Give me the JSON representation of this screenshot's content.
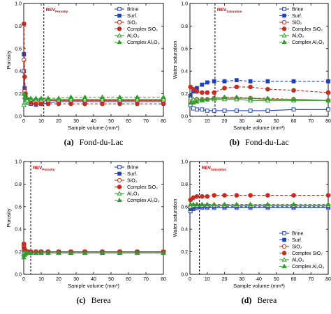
{
  "chart_data": [
    {
      "type": "line",
      "caption_letter": "(a)",
      "caption_text": "Fond-du-Lac",
      "xlabel": "Sample volume (mm³)",
      "ylabel": "Porosity",
      "xlim": [
        0,
        80
      ],
      "ylim": [
        0,
        1.0
      ],
      "xticks": [
        0,
        10,
        20,
        30,
        40,
        50,
        60,
        70,
        80
      ],
      "yticks": [
        0.0,
        0.2,
        0.4,
        0.6,
        0.8,
        1.0
      ],
      "ytick_labels": [
        "0.0",
        "0.2",
        "0.4",
        "0.6",
        "0.8",
        "1.0"
      ],
      "rev": {
        "x": 11.5,
        "label": "REV",
        "sub": "Porosity"
      },
      "legend_position": "top-right",
      "series": [
        {
          "name": "Brine",
          "color": "#1f3fbf",
          "marker": "square-open",
          "dash": "solid",
          "x": [
            0.1,
            0.5,
            1,
            2,
            4,
            7,
            10,
            14,
            20,
            27,
            35,
            45,
            55,
            65,
            80
          ],
          "y": [
            0.4,
            0.2,
            0.15,
            0.12,
            0.11,
            0.1,
            0.11,
            0.12,
            0.13,
            0.13,
            0.13,
            0.13,
            0.13,
            0.13,
            0.13
          ]
        },
        {
          "name": "Surf.",
          "color": "#1f3fbf",
          "marker": "square-filled",
          "dash": "dash",
          "x": [
            0.1,
            0.5,
            1,
            2,
            4,
            7,
            10,
            14,
            20,
            27,
            35,
            45,
            55,
            65,
            80
          ],
          "y": [
            0.55,
            0.25,
            0.18,
            0.15,
            0.14,
            0.14,
            0.14,
            0.14,
            0.14,
            0.14,
            0.14,
            0.14,
            0.14,
            0.14,
            0.14
          ]
        },
        {
          "name": "SiO₂",
          "color": "#cc2a1e",
          "marker": "circle-open",
          "dash": "solid",
          "x": [
            0.1,
            0.5,
            1,
            2,
            4,
            7,
            10,
            14,
            20,
            27,
            35,
            45,
            55,
            65,
            80
          ],
          "y": [
            0.5,
            0.22,
            0.16,
            0.14,
            0.14,
            0.13,
            0.13,
            0.14,
            0.14,
            0.14,
            0.14,
            0.14,
            0.14,
            0.14,
            0.14
          ]
        },
        {
          "name": "Complex SiO₂",
          "color": "#cc2a1e",
          "marker": "circle-filled",
          "dash": "dash",
          "x": [
            0.1,
            0.5,
            1,
            2,
            4,
            7,
            10,
            14,
            20,
            27,
            35,
            45,
            55,
            65,
            80
          ],
          "y": [
            0.82,
            0.35,
            0.2,
            0.15,
            0.12,
            0.11,
            0.11,
            0.11,
            0.11,
            0.11,
            0.11,
            0.11,
            0.11,
            0.11,
            0.11
          ]
        },
        {
          "name": "Al₂O₃",
          "color": "#2ea02c",
          "marker": "triangle-open",
          "dash": "solid",
          "x": [
            0.1,
            0.5,
            1,
            2,
            4,
            7,
            10,
            14,
            20,
            27,
            35,
            45,
            55,
            65,
            80
          ],
          "y": [
            0.1,
            0.12,
            0.13,
            0.14,
            0.15,
            0.15,
            0.15,
            0.15,
            0.15,
            0.15,
            0.15,
            0.15,
            0.15,
            0.15,
            0.15
          ]
        },
        {
          "name": "Complex Al₂O₃",
          "color": "#2ea02c",
          "marker": "triangle-filled",
          "dash": "dash",
          "x": [
            0.1,
            0.5,
            1,
            2,
            4,
            7,
            10,
            14,
            20,
            27,
            35,
            45,
            55,
            65,
            80
          ],
          "y": [
            0.2,
            0.17,
            0.16,
            0.16,
            0.16,
            0.16,
            0.16,
            0.16,
            0.16,
            0.17,
            0.17,
            0.17,
            0.17,
            0.17,
            0.17
          ]
        }
      ]
    },
    {
      "type": "line",
      "caption_letter": "(b)",
      "caption_text": "Fond-du-Lac",
      "xlabel": "Sample volume (mm³)",
      "ylabel": "Water saturation",
      "xlim": [
        0,
        80
      ],
      "ylim": [
        0,
        1.0
      ],
      "xticks": [
        0,
        10,
        20,
        30,
        40,
        50,
        60,
        70,
        80
      ],
      "yticks": [
        0.0,
        0.2,
        0.4,
        0.6,
        0.8,
        1.0
      ],
      "ytick_labels": [
        "0.0",
        "0.2",
        "0.4",
        "0.6",
        "0.8",
        "1.0"
      ],
      "rev": {
        "x": 14.5,
        "label": "REV",
        "sub": "Saturation"
      },
      "legend_position": "top-right",
      "series": [
        {
          "name": "Brine",
          "color": "#1f3fbf",
          "marker": "square-open",
          "dash": "solid",
          "x": [
            0.3,
            2,
            4,
            7,
            10,
            14,
            20,
            27,
            35,
            45,
            60,
            80
          ],
          "y": [
            0.1,
            0.07,
            0.06,
            0.06,
            0.05,
            0.05,
            0.05,
            0.05,
            0.05,
            0.05,
            0.06,
            0.06
          ]
        },
        {
          "name": "Surf.",
          "color": "#1f3fbf",
          "marker": "square-filled",
          "dash": "dash",
          "x": [
            0.3,
            2,
            4,
            7,
            10,
            14,
            20,
            27,
            35,
            45,
            60,
            80
          ],
          "y": [
            0.18,
            0.22,
            0.25,
            0.28,
            0.3,
            0.31,
            0.31,
            0.32,
            0.31,
            0.31,
            0.31,
            0.31
          ]
        },
        {
          "name": "SiO₂",
          "color": "#cc2a1e",
          "marker": "circle-open",
          "dash": "solid",
          "x": [
            0.3,
            2,
            4,
            7,
            10,
            14,
            20,
            27,
            35,
            45,
            60,
            80
          ],
          "y": [
            0.13,
            0.14,
            0.15,
            0.15,
            0.15,
            0.16,
            0.16,
            0.16,
            0.16,
            0.15,
            0.15,
            0.14
          ]
        },
        {
          "name": "Complex SiO₂",
          "color": "#cc2a1e",
          "marker": "circle-filled",
          "dash": "dash",
          "x": [
            0.3,
            2,
            4,
            7,
            10,
            14,
            20,
            27,
            35,
            45,
            60,
            80
          ],
          "y": [
            0.26,
            0.24,
            0.22,
            0.21,
            0.21,
            0.21,
            0.25,
            0.26,
            0.26,
            0.24,
            0.23,
            0.21
          ]
        },
        {
          "name": "Al₂O₃",
          "color": "#2ea02c",
          "marker": "triangle-open",
          "dash": "solid",
          "x": [
            0.3,
            2,
            4,
            7,
            10,
            14,
            20,
            27,
            35,
            45,
            60,
            80
          ],
          "y": [
            0.16,
            0.15,
            0.15,
            0.15,
            0.15,
            0.15,
            0.15,
            0.15,
            0.14,
            0.14,
            0.14,
            0.14
          ]
        },
        {
          "name": "Complex Al₂O₃",
          "color": "#2ea02c",
          "marker": "triangle-filled",
          "dash": "dash",
          "x": [
            0.3,
            2,
            4,
            7,
            10,
            14,
            20,
            27,
            35,
            45,
            60,
            80
          ],
          "y": [
            0.12,
            0.12,
            0.13,
            0.14,
            0.15,
            0.16,
            0.17,
            0.17,
            0.16,
            0.16,
            0.15,
            0.14
          ]
        }
      ]
    },
    {
      "type": "line",
      "caption_letter": "(c)",
      "caption_text": "Berea",
      "xlabel": "Sample volume (mm³)",
      "ylabel": "Porosity",
      "xlim": [
        0,
        80
      ],
      "ylim": [
        0,
        1.0
      ],
      "xticks": [
        0,
        10,
        20,
        30,
        40,
        50,
        60,
        70,
        80
      ],
      "yticks": [
        0.0,
        0.2,
        0.4,
        0.6,
        0.8,
        1.0
      ],
      "ytick_labels": [
        "0.0",
        "0.2",
        "0.4",
        "0.6",
        "0.8",
        "1.0"
      ],
      "rev": {
        "x": 4.0,
        "label": "REV",
        "sub": "Porosity"
      },
      "legend_position": "top-right",
      "series": [
        {
          "name": "Brine",
          "color": "#1f3fbf",
          "marker": "square-open",
          "dash": "solid",
          "x": [
            0.05,
            0.3,
            1,
            2,
            4,
            7,
            10,
            14,
            20,
            27,
            35,
            45,
            55,
            65,
            80
          ],
          "y": [
            0.24,
            0.21,
            0.2,
            0.19,
            0.19,
            0.19,
            0.19,
            0.19,
            0.19,
            0.19,
            0.19,
            0.19,
            0.19,
            0.19,
            0.19
          ]
        },
        {
          "name": "Surf.",
          "color": "#1f3fbf",
          "marker": "square-filled",
          "dash": "dash",
          "x": [
            0.05,
            0.3,
            1,
            2,
            4,
            7,
            10,
            14,
            20,
            27,
            35,
            45,
            55,
            65,
            80
          ],
          "y": [
            0.25,
            0.22,
            0.2,
            0.2,
            0.2,
            0.2,
            0.2,
            0.2,
            0.2,
            0.2,
            0.2,
            0.2,
            0.2,
            0.2,
            0.2
          ]
        },
        {
          "name": "SiO₂",
          "color": "#cc2a1e",
          "marker": "circle-open",
          "dash": "solid",
          "x": [
            0.05,
            0.3,
            1,
            2,
            4,
            7,
            10,
            14,
            20,
            27,
            35,
            45,
            55,
            65,
            80
          ],
          "y": [
            0.26,
            0.22,
            0.21,
            0.2,
            0.2,
            0.2,
            0.2,
            0.2,
            0.2,
            0.2,
            0.2,
            0.2,
            0.2,
            0.2,
            0.2
          ]
        },
        {
          "name": "Complex SiO₂",
          "color": "#cc2a1e",
          "marker": "circle-filled",
          "dash": "dash",
          "x": [
            0.05,
            0.3,
            1,
            2,
            4,
            7,
            10,
            14,
            20,
            27,
            35,
            45,
            55,
            65,
            80
          ],
          "y": [
            0.27,
            0.23,
            0.21,
            0.2,
            0.2,
            0.2,
            0.2,
            0.2,
            0.2,
            0.2,
            0.2,
            0.2,
            0.2,
            0.2,
            0.2
          ]
        },
        {
          "name": "Al₂O₃",
          "color": "#2ea02c",
          "marker": "triangle-open",
          "dash": "solid",
          "x": [
            0.05,
            0.3,
            1,
            2,
            4,
            7,
            10,
            14,
            20,
            27,
            35,
            45,
            55,
            65,
            80
          ],
          "y": [
            0.18,
            0.19,
            0.19,
            0.19,
            0.19,
            0.19,
            0.19,
            0.19,
            0.19,
            0.19,
            0.19,
            0.19,
            0.19,
            0.19,
            0.19
          ]
        },
        {
          "name": "Complex Al₂O₃",
          "color": "#2ea02c",
          "marker": "triangle-filled",
          "dash": "dash",
          "x": [
            0.05,
            0.3,
            1,
            2,
            4,
            7,
            10,
            14,
            20,
            27,
            35,
            45,
            55,
            65,
            80
          ],
          "y": [
            0.15,
            0.17,
            0.18,
            0.19,
            0.19,
            0.19,
            0.19,
            0.19,
            0.19,
            0.19,
            0.19,
            0.19,
            0.19,
            0.19,
            0.19
          ]
        }
      ]
    },
    {
      "type": "line",
      "caption_letter": "(d)",
      "caption_text": "Berea",
      "xlabel": "Sample volume (mm³)",
      "ylabel": "Water saturation",
      "xlim": [
        0,
        80
      ],
      "ylim": [
        0,
        1.0
      ],
      "xticks": [
        0,
        10,
        20,
        30,
        40,
        50,
        60,
        70,
        80
      ],
      "yticks": [
        0.0,
        0.2,
        0.4,
        0.6,
        0.8,
        1.0
      ],
      "ytick_labels": [
        "0.0",
        "0.2",
        "0.4",
        "0.6",
        "0.8",
        "1.0"
      ],
      "rev": {
        "x": 5.5,
        "label": "REV",
        "sub": "Saturation"
      },
      "legend_position": "bottom-right",
      "series": [
        {
          "name": "Brine",
          "color": "#1f3fbf",
          "marker": "square-open",
          "dash": "solid",
          "x": [
            0.3,
            2,
            4,
            7,
            10,
            14,
            20,
            27,
            35,
            45,
            60,
            80
          ],
          "y": [
            0.56,
            0.58,
            0.59,
            0.59,
            0.59,
            0.59,
            0.59,
            0.59,
            0.59,
            0.59,
            0.59,
            0.59
          ]
        },
        {
          "name": "Surf.",
          "color": "#1f3fbf",
          "marker": "square-filled",
          "dash": "dash",
          "x": [
            0.3,
            2,
            4,
            7,
            10,
            14,
            20,
            27,
            35,
            45,
            60,
            80
          ],
          "y": [
            0.58,
            0.59,
            0.6,
            0.6,
            0.6,
            0.6,
            0.6,
            0.6,
            0.6,
            0.6,
            0.6,
            0.6
          ]
        },
        {
          "name": "SiO₂",
          "color": "#cc2a1e",
          "marker": "circle-open",
          "dash": "solid",
          "x": [
            0.3,
            2,
            4,
            7,
            10,
            14,
            20,
            27,
            35,
            45,
            60,
            80
          ],
          "y": [
            0.6,
            0.61,
            0.61,
            0.61,
            0.61,
            0.61,
            0.61,
            0.61,
            0.61,
            0.61,
            0.61,
            0.61
          ]
        },
        {
          "name": "Complex SiO₂",
          "color": "#cc2a1e",
          "marker": "circle-filled",
          "dash": "dash",
          "x": [
            0.3,
            2,
            4,
            7,
            10,
            14,
            20,
            27,
            35,
            45,
            60,
            80
          ],
          "y": [
            0.66,
            0.68,
            0.69,
            0.69,
            0.69,
            0.7,
            0.7,
            0.7,
            0.7,
            0.7,
            0.7,
            0.7
          ]
        },
        {
          "name": "Al₂O₃",
          "color": "#2ea02c",
          "marker": "triangle-open",
          "dash": "solid",
          "x": [
            0.3,
            2,
            4,
            7,
            10,
            14,
            20,
            27,
            35,
            45,
            60,
            80
          ],
          "y": [
            0.6,
            0.61,
            0.61,
            0.61,
            0.61,
            0.61,
            0.61,
            0.61,
            0.61,
            0.61,
            0.61,
            0.61
          ]
        },
        {
          "name": "Complex Al₂O₃",
          "color": "#2ea02c",
          "marker": "triangle-filled",
          "dash": "dash",
          "x": [
            0.3,
            2,
            4,
            7,
            10,
            14,
            20,
            27,
            35,
            45,
            60,
            80
          ],
          "y": [
            0.62,
            0.62,
            0.62,
            0.62,
            0.62,
            0.62,
            0.62,
            0.62,
            0.62,
            0.62,
            0.62,
            0.62
          ]
        }
      ]
    }
  ]
}
